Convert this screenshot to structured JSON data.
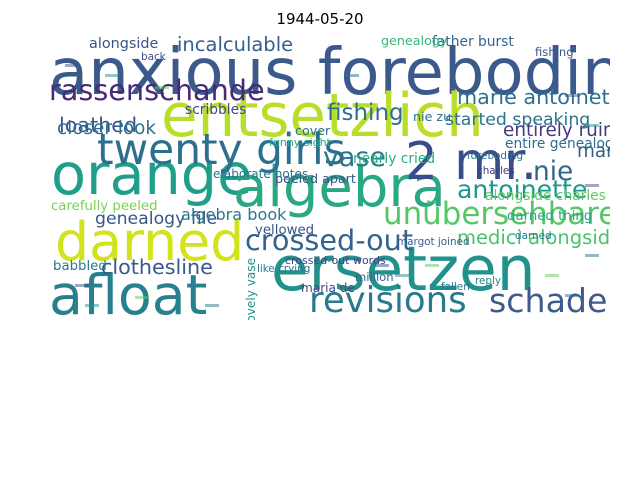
{
  "chart_data": {
    "type": "wordcloud",
    "title": "1944-05-20",
    "colormap": "viridis",
    "words": [
      {
        "text": "anxious foreboding",
        "weight": 1.0,
        "color": "#3b5a8b"
      },
      {
        "text": "entsetzlich",
        "weight": 0.92,
        "color": "#b8de29"
      },
      {
        "text": "orange",
        "weight": 0.88,
        "color": "#1f9e89"
      },
      {
        "text": "algebra",
        "weight": 0.86,
        "color": "#2aa783"
      },
      {
        "text": "ersetzen",
        "weight": 0.95,
        "color": "#21918c"
      },
      {
        "text": "darned",
        "weight": 0.82,
        "color": "#d2e21b"
      },
      {
        "text": "afloat",
        "weight": 0.85,
        "color": "#27808e"
      },
      {
        "text": "2 mr.",
        "weight": 0.78,
        "color": "#3a4d8b"
      },
      {
        "text": "twenty girls",
        "weight": 0.62,
        "color": "#2d6f8e"
      },
      {
        "text": "unübersehbarer",
        "weight": 0.42,
        "color": "#56c667"
      },
      {
        "text": "revisions",
        "weight": 0.5,
        "color": "#2a7a8e"
      },
      {
        "text": "schaden",
        "weight": 0.46,
        "color": "#3e5b8a"
      },
      {
        "text": "rassenschande",
        "weight": 0.38,
        "color": "#482878"
      },
      {
        "text": "crossed-out",
        "weight": 0.38,
        "color": "#33638d"
      },
      {
        "text": "vase",
        "weight": 0.35,
        "color": "#2b758e"
      },
      {
        "text": "antoinette",
        "weight": 0.32,
        "color": "#1f968b"
      },
      {
        "text": "nie",
        "weight": 0.34,
        "color": "#31688e"
      },
      {
        "text": "fishing",
        "weight": 0.28,
        "color": "#2e6e8e"
      },
      {
        "text": "marie antoinette",
        "weight": 0.24,
        "color": "#2c718e"
      },
      {
        "text": "loathed",
        "weight": 0.24,
        "color": "#3a548c"
      },
      {
        "text": "incalculable",
        "weight": 0.22,
        "color": "#355f8d"
      },
      {
        "text": "medici alongside",
        "weight": 0.22,
        "color": "#4ac16d"
      },
      {
        "text": "clothesline",
        "weight": 0.24,
        "color": "#38598c"
      },
      {
        "text": "closer look",
        "weight": 0.2,
        "color": "#2d708e"
      },
      {
        "text": "entirely ruined",
        "weight": 0.2,
        "color": "#453781"
      },
      {
        "text": "started speaking",
        "weight": 0.18,
        "color": "#2c728e"
      },
      {
        "text": "marie",
        "weight": 0.2,
        "color": "#355e8d"
      },
      {
        "text": "genealogy file",
        "weight": 0.18,
        "color": "#39568c"
      },
      {
        "text": "algebra book",
        "weight": 0.16,
        "color": "#2a778e"
      },
      {
        "text": "alongside",
        "weight": 0.13,
        "color": "#3b528b"
      },
      {
        "text": "father burst",
        "weight": 0.12,
        "color": "#33638d"
      },
      {
        "text": "scribbles",
        "weight": 0.12,
        "color": "#3e4c8a"
      },
      {
        "text": "nearly cried",
        "weight": 0.12,
        "color": "#29af7f"
      },
      {
        "text": "entire genealogy",
        "weight": 0.12,
        "color": "#2e6d8e"
      },
      {
        "text": "alongside charles",
        "weight": 0.12,
        "color": "#5ec962"
      },
      {
        "text": "darned thing",
        "weight": 0.11,
        "color": "#21a685"
      },
      {
        "text": "yellowed",
        "weight": 0.11,
        "color": "#3b518b"
      },
      {
        "text": "carefully peeled",
        "weight": 0.11,
        "color": "#7ad151"
      },
      {
        "text": "babbled",
        "weight": 0.11,
        "color": "#2a788e"
      },
      {
        "text": "peeled apart",
        "weight": 0.1,
        "color": "#3b528b"
      },
      {
        "text": "cover",
        "weight": 0.1,
        "color": "#2c738e"
      },
      {
        "text": "genealogy",
        "weight": 0.1,
        "color": "#35b779"
      },
      {
        "text": "nie zu",
        "weight": 0.1,
        "color": "#2f6c8e"
      },
      {
        "text": "lovely vase",
        "weight": 0.09,
        "color": "#21918c"
      },
      {
        "text": "maria de",
        "weight": 0.09,
        "color": "#3f4788"
      },
      {
        "text": "elaborate notes",
        "weight": 0.09,
        "color": "#2c728e"
      },
      {
        "text": "million",
        "weight": 0.08,
        "color": "#31688e"
      },
      {
        "text": "fishing",
        "weight": 0.08,
        "color": "#3b528b"
      },
      {
        "text": "funny sight",
        "weight": 0.07,
        "color": "#22a884"
      },
      {
        "text": "crossed-out words",
        "weight": 0.07,
        "color": "#414487"
      },
      {
        "text": "like crying",
        "weight": 0.06,
        "color": "#2a788e"
      },
      {
        "text": "margot joined",
        "weight": 0.06,
        "color": "#355f8d"
      },
      {
        "text": "back",
        "weight": 0.06,
        "color": "#3e4a89"
      },
      {
        "text": "fallen",
        "weight": 0.06,
        "color": "#2a788e"
      },
      {
        "text": "reply",
        "weight": 0.06,
        "color": "#238a8d"
      },
      {
        "text": "charles",
        "weight": 0.06,
        "color": "#443983"
      },
      {
        "text": "darned",
        "weight": 0.06,
        "color": "#287c8e"
      },
      {
        "text": "foreboding",
        "weight": 0.06,
        "color": "#2d708e"
      }
    ]
  }
}
